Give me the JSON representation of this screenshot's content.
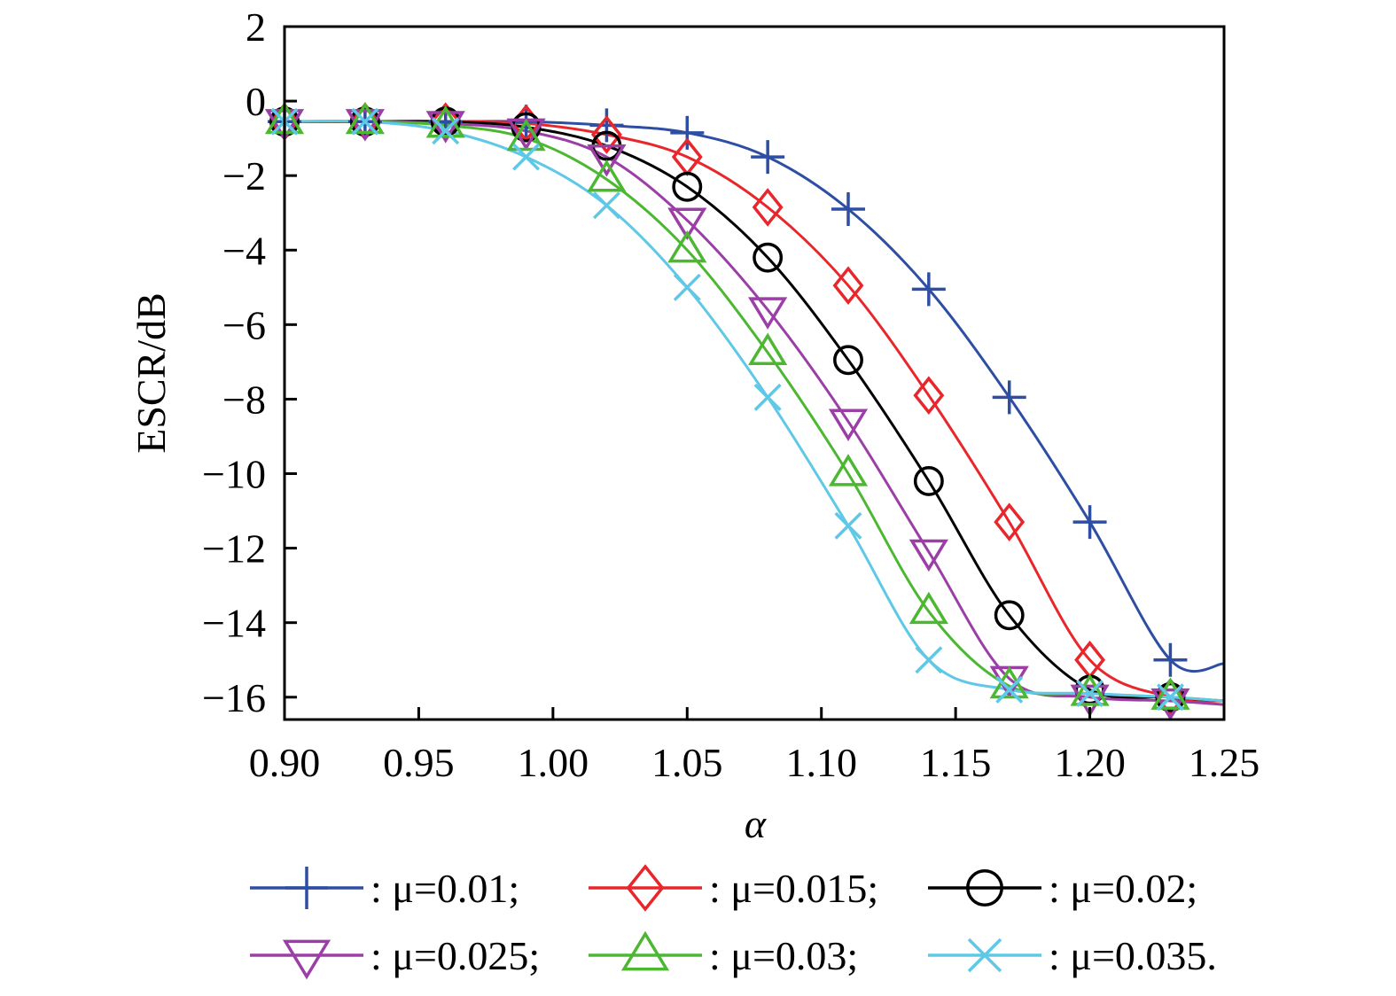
{
  "chart_data": {
    "type": "line",
    "title": "",
    "xlabel": "α",
    "ylabel": "ESCR/dB",
    "xlim": [
      0.9,
      1.25
    ],
    "ylim": [
      -16.6,
      2
    ],
    "grid": false,
    "legend_placement": "bottom",
    "x_ticks": [
      "0.90",
      "0.95",
      "1.00",
      "1.05",
      "1.10",
      "1.15",
      "1.20",
      "1.25"
    ],
    "x_tick_values": [
      0.9,
      0.95,
      1.0,
      1.05,
      1.1,
      1.15,
      1.2,
      1.25
    ],
    "y_ticks": [
      "2",
      "0",
      "−2",
      "−4",
      "−6",
      "−8",
      "−10",
      "−12",
      "−14",
      "−16"
    ],
    "y_tick_values": [
      2,
      0,
      -2,
      -4,
      -6,
      -8,
      -10,
      -12,
      -14,
      -16
    ],
    "x": [
      0.9,
      0.93,
      0.96,
      0.99,
      1.02,
      1.05,
      1.08,
      1.11,
      1.14,
      1.17,
      1.2,
      1.23
    ],
    "series": [
      {
        "name": ": μ=0.01;",
        "color": "#2e4ea3",
        "marker": "plus",
        "values": [
          -0.55,
          -0.55,
          -0.55,
          -0.55,
          -0.65,
          -0.85,
          -1.5,
          -2.9,
          -5.05,
          -7.95,
          -11.3,
          -15.0
        ]
      },
      {
        "name": ": μ=0.015;",
        "color": "#e8262b",
        "marker": "diamond",
        "values": [
          -0.55,
          -0.55,
          -0.55,
          -0.6,
          -0.9,
          -1.5,
          -2.85,
          -4.95,
          -7.9,
          -11.3,
          -15.0,
          -16.0
        ]
      },
      {
        "name": ": μ=0.02;",
        "color": "#000000",
        "marker": "circle",
        "values": [
          -0.55,
          -0.55,
          -0.55,
          -0.7,
          -1.2,
          -2.3,
          -4.2,
          -6.95,
          -10.2,
          -13.8,
          -15.8,
          -16.0
        ]
      },
      {
        "name": ": μ=0.025;",
        "color": "#9b3fa6",
        "marker": "triangle-down",
        "values": [
          -0.55,
          -0.55,
          -0.6,
          -0.8,
          -1.5,
          -3.2,
          -5.6,
          -8.6,
          -12.1,
          -15.5,
          -16.0,
          -16.1
        ]
      },
      {
        "name": ": μ=0.03;",
        "color": "#4cb832",
        "marker": "triangle-up",
        "values": [
          -0.55,
          -0.55,
          -0.65,
          -1.0,
          -2.1,
          -4.0,
          -6.75,
          -10.0,
          -13.7,
          -15.7,
          -15.9,
          -16.0
        ]
      },
      {
        "name": ": μ=0.035.",
        "color": "#5ec8e6",
        "marker": "x",
        "values": [
          -0.55,
          -0.55,
          -0.8,
          -1.5,
          -2.8,
          -5.0,
          -7.95,
          -11.4,
          -15.0,
          -15.8,
          -15.9,
          -16.0
        ]
      }
    ]
  }
}
